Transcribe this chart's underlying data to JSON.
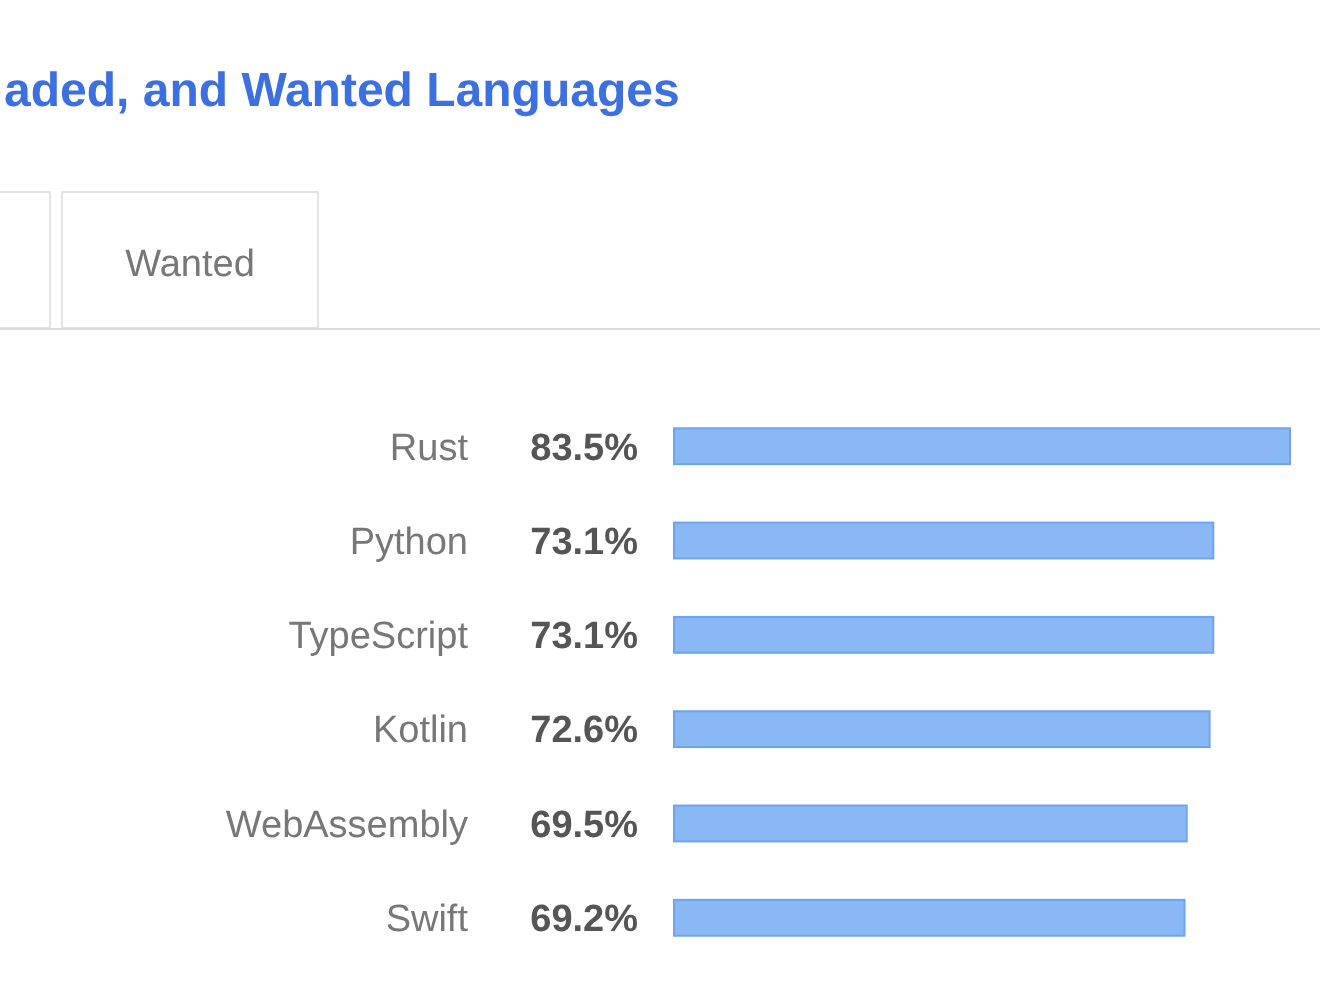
{
  "chart_data": {
    "type": "bar",
    "orientation": "horizontal",
    "title": "aded, and Wanted Languages",
    "annotations": [
      "Wanted"
    ],
    "categories": [
      "Rust",
      "Python",
      "TypeScript",
      "Kotlin",
      "WebAssembly",
      "Swift"
    ],
    "values": [
      83.5,
      73.1,
      73.1,
      72.6,
      69.5,
      69.2
    ],
    "value_labels": [
      "83.5%",
      "73.1%",
      "73.1%",
      "72.6%",
      "69.5%",
      "69.2%"
    ],
    "color": "#8ab8f5",
    "tick_labels": "y"
  }
}
